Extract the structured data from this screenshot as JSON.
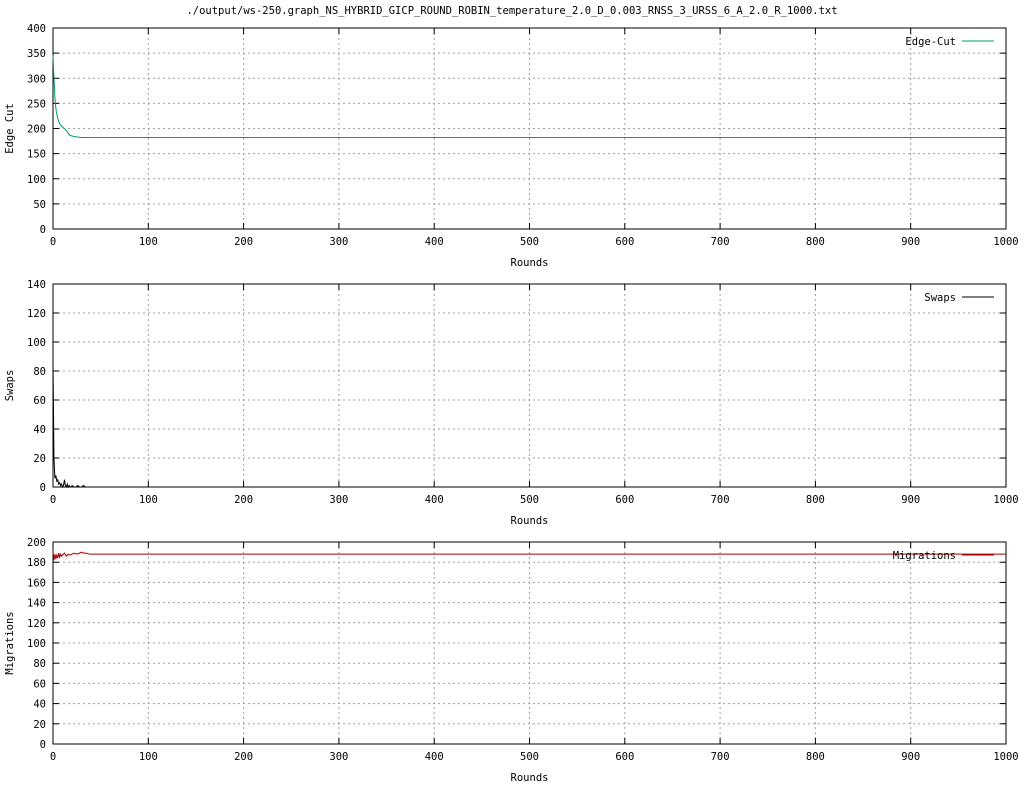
{
  "title": "./output/ws-250.graph_NS_HYBRID_GICP_ROUND_ROBIN_temperature_2.0_D_0.003_RNSS_3_URSS_6_A_2.0_R_1000.txt",
  "chart_data": [
    {
      "type": "line",
      "xlabel": "Rounds",
      "ylabel": "Edge Cut",
      "xlim": [
        0,
        1000
      ],
      "ylim": [
        0,
        400
      ],
      "xticks": [
        0,
        100,
        200,
        300,
        400,
        500,
        600,
        700,
        800,
        900,
        1000
      ],
      "yticks": [
        0,
        50,
        100,
        150,
        200,
        250,
        300,
        350,
        400
      ],
      "grid": true,
      "legend_position": "top-right",
      "series": [
        {
          "name": "Edge-Cut",
          "color": "#00a060",
          "x": [
            0,
            1,
            2,
            3,
            4,
            5,
            6,
            7,
            8,
            9,
            10,
            12,
            14,
            16,
            18,
            20,
            25,
            30,
            40,
            60,
            100,
            200,
            400,
            600,
            800,
            1000
          ],
          "y": [
            345,
            300,
            262,
            240,
            228,
            220,
            214,
            210,
            207,
            205,
            203,
            200,
            196,
            190,
            186,
            185,
            183,
            182,
            182,
            182,
            182,
            182,
            182,
            182,
            182,
            182
          ]
        }
      ]
    },
    {
      "type": "line",
      "xlabel": "Rounds",
      "ylabel": "Swaps",
      "xlim": [
        0,
        1000
      ],
      "ylim": [
        0,
        140
      ],
      "xticks": [
        0,
        100,
        200,
        300,
        400,
        500,
        600,
        700,
        800,
        900,
        1000
      ],
      "yticks": [
        0,
        20,
        40,
        60,
        80,
        100,
        120,
        140
      ],
      "grid": true,
      "legend_position": "top-right",
      "series": [
        {
          "name": "Swaps",
          "color": "#000000",
          "x": [
            0,
            1,
            2,
            3,
            4,
            5,
            6,
            7,
            8,
            9,
            10,
            11,
            12,
            13,
            14,
            15,
            16,
            17,
            18,
            19,
            20,
            22,
            24,
            26,
            28,
            30,
            32,
            34,
            36,
            40,
            50,
            100,
            1000
          ],
          "y": [
            86,
            20,
            6,
            8,
            4,
            5,
            2,
            3,
            1,
            2,
            0,
            1,
            5,
            1,
            0,
            2,
            0,
            1,
            0,
            0,
            1,
            0,
            0,
            1,
            0,
            0,
            1,
            0,
            0,
            0,
            0,
            0,
            0
          ]
        }
      ]
    },
    {
      "type": "line",
      "xlabel": "Rounds",
      "ylabel": "Migrations",
      "xlim": [
        0,
        1000
      ],
      "ylim": [
        0,
        200
      ],
      "xticks": [
        0,
        100,
        200,
        300,
        400,
        500,
        600,
        700,
        800,
        900,
        1000
      ],
      "yticks": [
        0,
        20,
        40,
        60,
        80,
        100,
        120,
        140,
        160,
        180,
        200
      ],
      "grid": true,
      "legend_position": "top-right",
      "series": [
        {
          "name": "Migrations",
          "color": "#a00000",
          "x": [
            0,
            1,
            2,
            3,
            4,
            5,
            6,
            7,
            8,
            9,
            10,
            12,
            14,
            16,
            18,
            20,
            22,
            25,
            28,
            30,
            32,
            35,
            38,
            40,
            60,
            100,
            1000
          ],
          "y": [
            191,
            182,
            188,
            183,
            187,
            184,
            189,
            185,
            188,
            186,
            187,
            189,
            186,
            188,
            187,
            188,
            189,
            188,
            189,
            190,
            189,
            189,
            188,
            188,
            188,
            188,
            188
          ]
        }
      ]
    }
  ]
}
